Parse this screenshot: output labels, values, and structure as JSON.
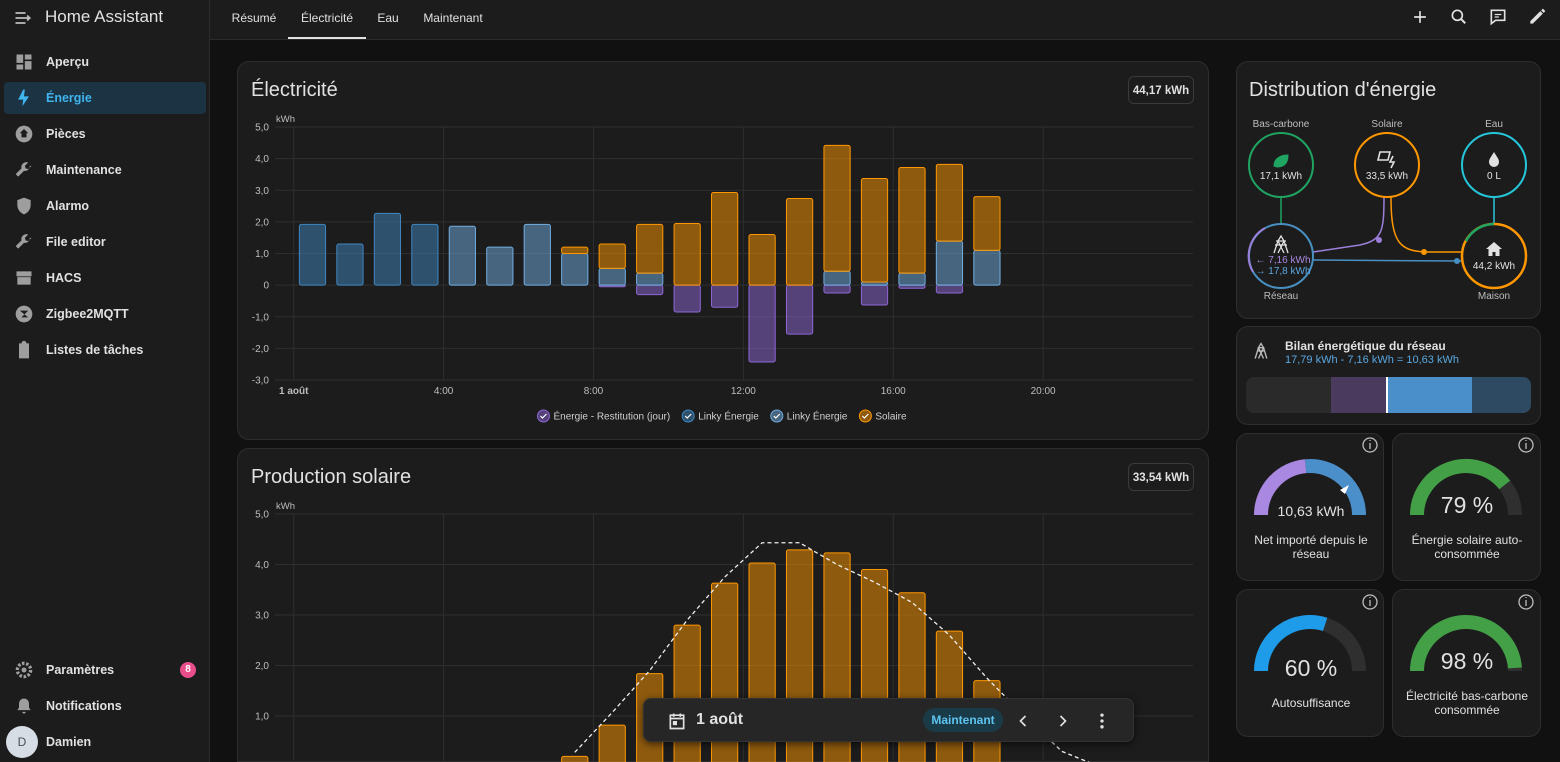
{
  "header": {
    "title": "Home Assistant",
    "tabs": [
      "Résumé",
      "Électricité",
      "Eau",
      "Maintenant"
    ]
  },
  "sidebar": {
    "items": [
      "Aperçu",
      "Énergie",
      "Pièces",
      "Maintenance",
      "Alarmo",
      "File editor",
      "HACS",
      "Zigbee2MQTT",
      "Listes de tâches"
    ],
    "settings": "Paramètres",
    "settings_badge": 8,
    "notifications": "Notifications",
    "user": "Damien",
    "user_initial": "D"
  },
  "chart_data": [
    {
      "type": "bar",
      "title": "Électricité",
      "annotation": "44,17 kWh",
      "y_label": "kWh",
      "stacked": true,
      "grid": true,
      "x": [
        0,
        1,
        2,
        3,
        4,
        5,
        6,
        7,
        8,
        9,
        10,
        11,
        12,
        13,
        14,
        15,
        16,
        17,
        18
      ],
      "xlim": [
        -0.5,
        24
      ],
      "xticks": [
        {
          "value": 0,
          "label": "1 août"
        },
        {
          "value": 4,
          "label": "4:00"
        },
        {
          "value": 8,
          "label": "8:00"
        },
        {
          "value": 12,
          "label": "12:00"
        },
        {
          "value": 16,
          "label": "16:00"
        },
        {
          "value": 20,
          "label": "20:00"
        }
      ],
      "ylim": [
        -3,
        5
      ],
      "yticks": [
        {
          "value": -3,
          "label": "-3,0"
        },
        {
          "value": -2,
          "label": "-2,0"
        },
        {
          "value": -1,
          "label": "-1,0"
        },
        0,
        {
          "value": 1,
          "label": "1,0"
        },
        {
          "value": 2,
          "label": "2,0"
        },
        {
          "value": 3,
          "label": "3,0"
        },
        {
          "value": 4,
          "label": "4,0"
        },
        {
          "value": 5,
          "label": "5,0"
        }
      ],
      "series": [
        {
          "name": "Énergie - Restitution (jour)",
          "color": "#8e67d6",
          "values": [
            null,
            null,
            null,
            null,
            null,
            null,
            null,
            null,
            -0.05,
            -0.3,
            -0.85,
            -0.7,
            -2.43,
            -1.55,
            -0.25,
            -0.63,
            -0.1,
            -0.25,
            null
          ]
        },
        {
          "name": "Linky Énergie",
          "color": "#3f86c0",
          "values": [
            1.92,
            1.3,
            2.27,
            1.92,
            null,
            null,
            null,
            null,
            null,
            null,
            null,
            null,
            null,
            null,
            null,
            null,
            null,
            null,
            null
          ]
        },
        {
          "name": "Linky Énergie",
          "color": "#72aee2",
          "values": [
            null,
            null,
            null,
            null,
            1.86,
            1.2,
            1.92,
            1.0,
            0.53,
            0.38,
            0,
            0,
            0,
            0,
            0.44,
            0.1,
            0.38,
            1.39,
            1.1
          ]
        },
        {
          "name": "Solaire",
          "color": "#ff9800",
          "values": [
            null,
            null,
            null,
            null,
            null,
            null,
            null,
            0.2,
            0.77,
            1.54,
            1.95,
            2.93,
            1.6,
            2.74,
            3.98,
            3.27,
            3.34,
            2.43,
            1.7
          ]
        }
      ]
    },
    {
      "type": "bar",
      "title": "Production solaire",
      "annotation": "33,54 kWh",
      "y_label": "kWh",
      "grid": true,
      "x": [
        7,
        8,
        9,
        10,
        11,
        12,
        13,
        14,
        15,
        16,
        17,
        18,
        19,
        20,
        21
      ],
      "xlim": [
        -0.5,
        24
      ],
      "xticks": [
        0,
        4,
        8,
        12,
        16,
        20
      ],
      "ylim": [
        0,
        5
      ],
      "yticks": [
        {
          "value": 1,
          "label": "1,0"
        },
        {
          "value": 2,
          "label": "2,0"
        },
        {
          "value": 3,
          "label": "3,0"
        },
        {
          "value": 4,
          "label": "4,0"
        },
        {
          "value": 5,
          "label": "5,0"
        }
      ],
      "series": [
        {
          "color": "#ff9800",
          "values": [
            0.2,
            0.82,
            1.84,
            2.8,
            3.63,
            4.03,
            4.29,
            4.23,
            3.9,
            3.44,
            2.68,
            1.7,
            null,
            null,
            null
          ]
        },
        {
          "type": "line",
          "dashed": true,
          "color": "#eeeeee",
          "values": [
            0.28,
            1.07,
            1.9,
            2.9,
            3.75,
            4.43,
            4.43,
            4.0,
            3.65,
            3.25,
            2.6,
            1.75,
            1.0,
            0.3,
            0.0
          ]
        }
      ]
    }
  ],
  "distribution": {
    "title": "Distribution d'énergie",
    "low_carbon": {
      "label": "Bas-carbone",
      "value": "17,1 kWh"
    },
    "solar": {
      "label": "Solaire",
      "value": "33,5 kWh"
    },
    "water": {
      "label": "Eau",
      "value": "0 L"
    },
    "grid": {
      "label": "Réseau",
      "returned": "← 7,16 kWh",
      "consumed": "→ 17,8 kWh"
    },
    "home": {
      "label": "Maison",
      "value": "44,2 kWh"
    }
  },
  "grid_balance": {
    "title": "Bilan énergétique du réseau",
    "formula": "17,79 kWh - 7,16 kWh = 10,63 kWh"
  },
  "gauges": [
    {
      "value_label": "10,63 kWh",
      "label": "Net importé depuis le réseau"
    },
    {
      "value": 79,
      "value_label": "79 %",
      "label": "Énergie solaire auto-consommée",
      "color": "#43a047"
    },
    {
      "value": 60,
      "value_label": "60 %",
      "label": "Autosuffisance",
      "color": "#1e9be9"
    },
    {
      "value": 98,
      "value_label": "98 %",
      "label": "Électricité bas-carbone consommée",
      "color": "#43a047"
    }
  ],
  "date_picker": {
    "date": "1 août",
    "now": "Maintenant"
  }
}
